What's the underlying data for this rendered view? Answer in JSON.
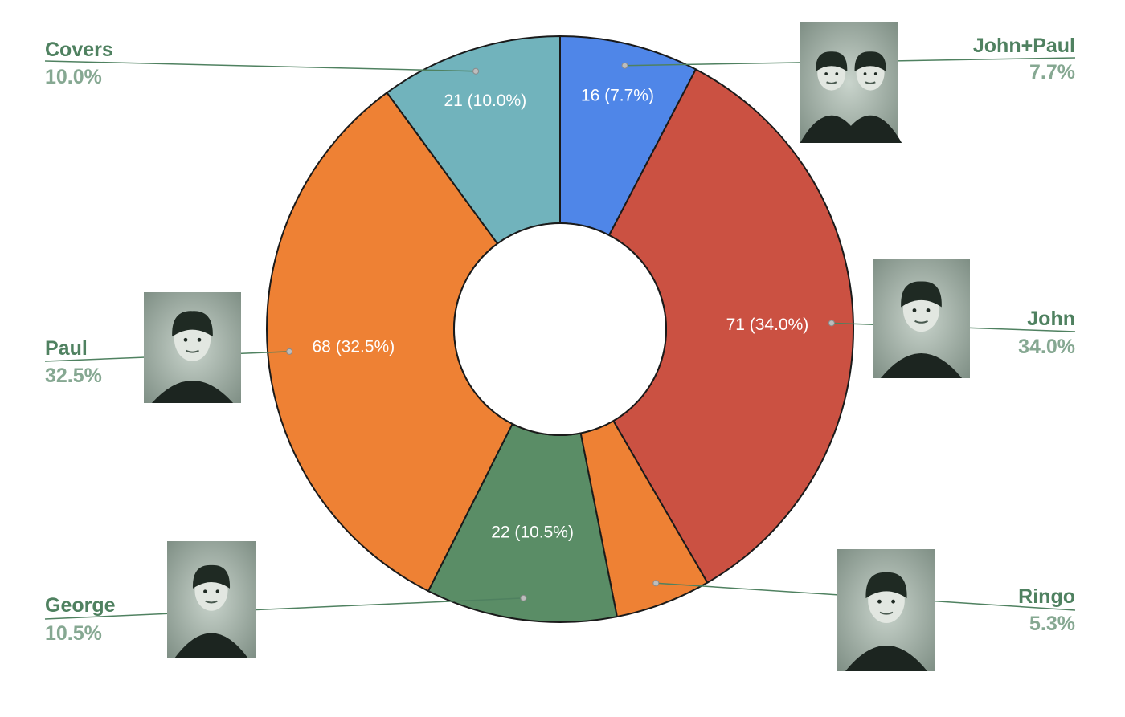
{
  "chart_data": {
    "type": "pie",
    "donut": true,
    "title": "",
    "slices": [
      {
        "name": "John+Paul",
        "value": 16,
        "percent": "7.7%",
        "slice_label": "16 (7.7%)",
        "color": "#4f86e8",
        "portrait": "john-paul-portrait",
        "show_inner_label": true
      },
      {
        "name": "John",
        "value": 71,
        "percent": "34.0%",
        "slice_label": "71 (34.0%)",
        "color": "#cb5142",
        "portrait": "john-portrait",
        "show_inner_label": true
      },
      {
        "name": "Ringo",
        "value": 11,
        "percent": "5.3%",
        "slice_label": "",
        "color": "#ee8134",
        "portrait": "ringo-portrait",
        "show_inner_label": false
      },
      {
        "name": "George",
        "value": 22,
        "percent": "10.5%",
        "slice_label": "22 (10.5%)",
        "color": "#5a8d66",
        "portrait": "george-portrait",
        "show_inner_label": true
      },
      {
        "name": "Paul",
        "value": 68,
        "percent": "32.5%",
        "slice_label": "68 (32.5%)",
        "color": "#ee8134",
        "portrait": "paul-portrait",
        "show_inner_label": true
      },
      {
        "name": "Covers",
        "value": 21,
        "percent": "10.0%",
        "slice_label": "21 (10.0%)",
        "color": "#71b3bc",
        "portrait": "",
        "show_inner_label": true
      }
    ],
    "callout_name_color": "#4f8160",
    "callout_pct_color": "#86a892",
    "leader_color": "#4f8160",
    "stroke_color": "#1a1a1a"
  }
}
